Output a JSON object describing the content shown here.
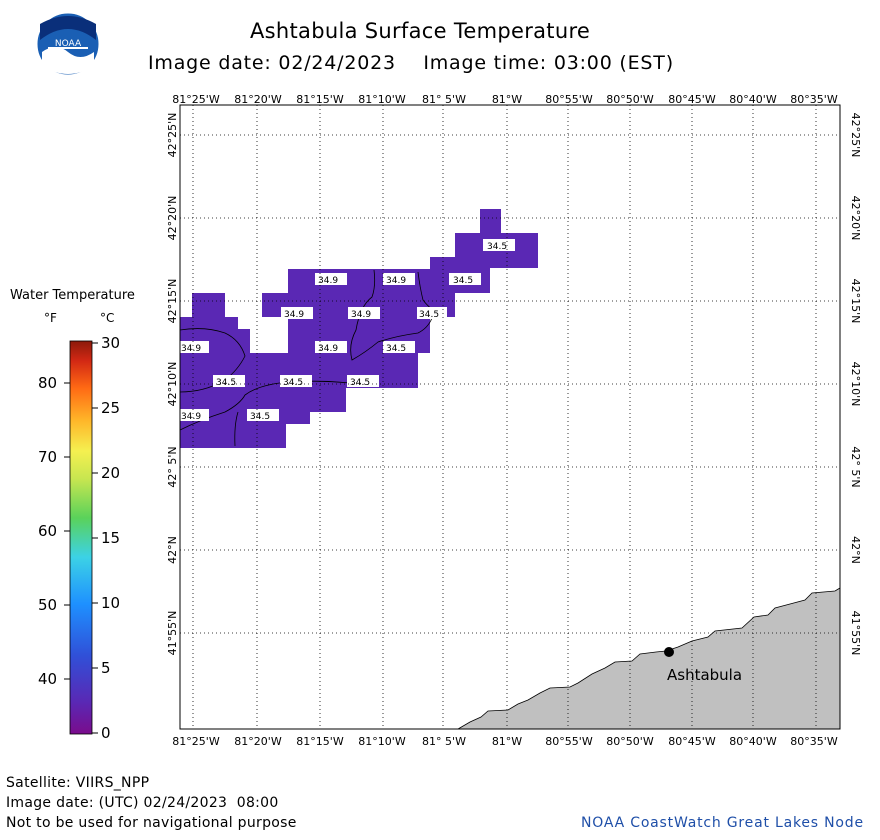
{
  "header": {
    "title": "Ashtabula Surface Temperature",
    "image_date": "Image date: 02/24/2023",
    "image_time": "Image time: 03:00 (EST)",
    "logo_text": "NOAA"
  },
  "map": {
    "top_lon_labels": [
      "81°25'W",
      "81°20'W",
      "81°15'W",
      "81°10'W",
      "81° 5'W",
      "81°W",
      "80°55'W",
      "80°50'W",
      "80°45'W",
      "80°40'W",
      "80°35'W"
    ],
    "bottom_lon_labels": [
      "81°25'W",
      "81°20'W",
      "81°15'W",
      "81°10'W",
      "81° 5'W",
      "81°W",
      "80°55'W",
      "80°50'W",
      "80°45'W",
      "80°40'W",
      "80°35'W"
    ],
    "lat_labels": [
      "42°25'N",
      "42°20'N",
      "42°15'N",
      "42°10'N",
      "42° 5'N",
      "42°N",
      "41°55'N"
    ],
    "city": "Ashtabula",
    "water_color": "#5a28b4",
    "land_color": "#c0c0c0",
    "isotherm_labels": [
      "34.5",
      "34.9",
      "34.9",
      "34.5",
      "34.9",
      "34.9",
      "34.5",
      "34.9",
      "34.9",
      "34.5",
      "34.5",
      "34.5",
      "34.5",
      "34.9",
      "34.5"
    ]
  },
  "legend": {
    "title": "Water Temperature",
    "unit_f": "°F",
    "unit_c": "°C",
    "f_ticks": [
      "80",
      "70",
      "60",
      "50",
      "40"
    ],
    "c_ticks": [
      "30",
      "25",
      "20",
      "15",
      "10",
      "5",
      "0"
    ]
  },
  "footer": {
    "satellite": "Satellite: VIIRS_NPP",
    "utc_date": "Image date: (UTC) 02/24/2023  08:00",
    "disclaimer": "Not to be used for navigational purpose",
    "credit": "NOAA CoastWatch Great Lakes Node"
  }
}
